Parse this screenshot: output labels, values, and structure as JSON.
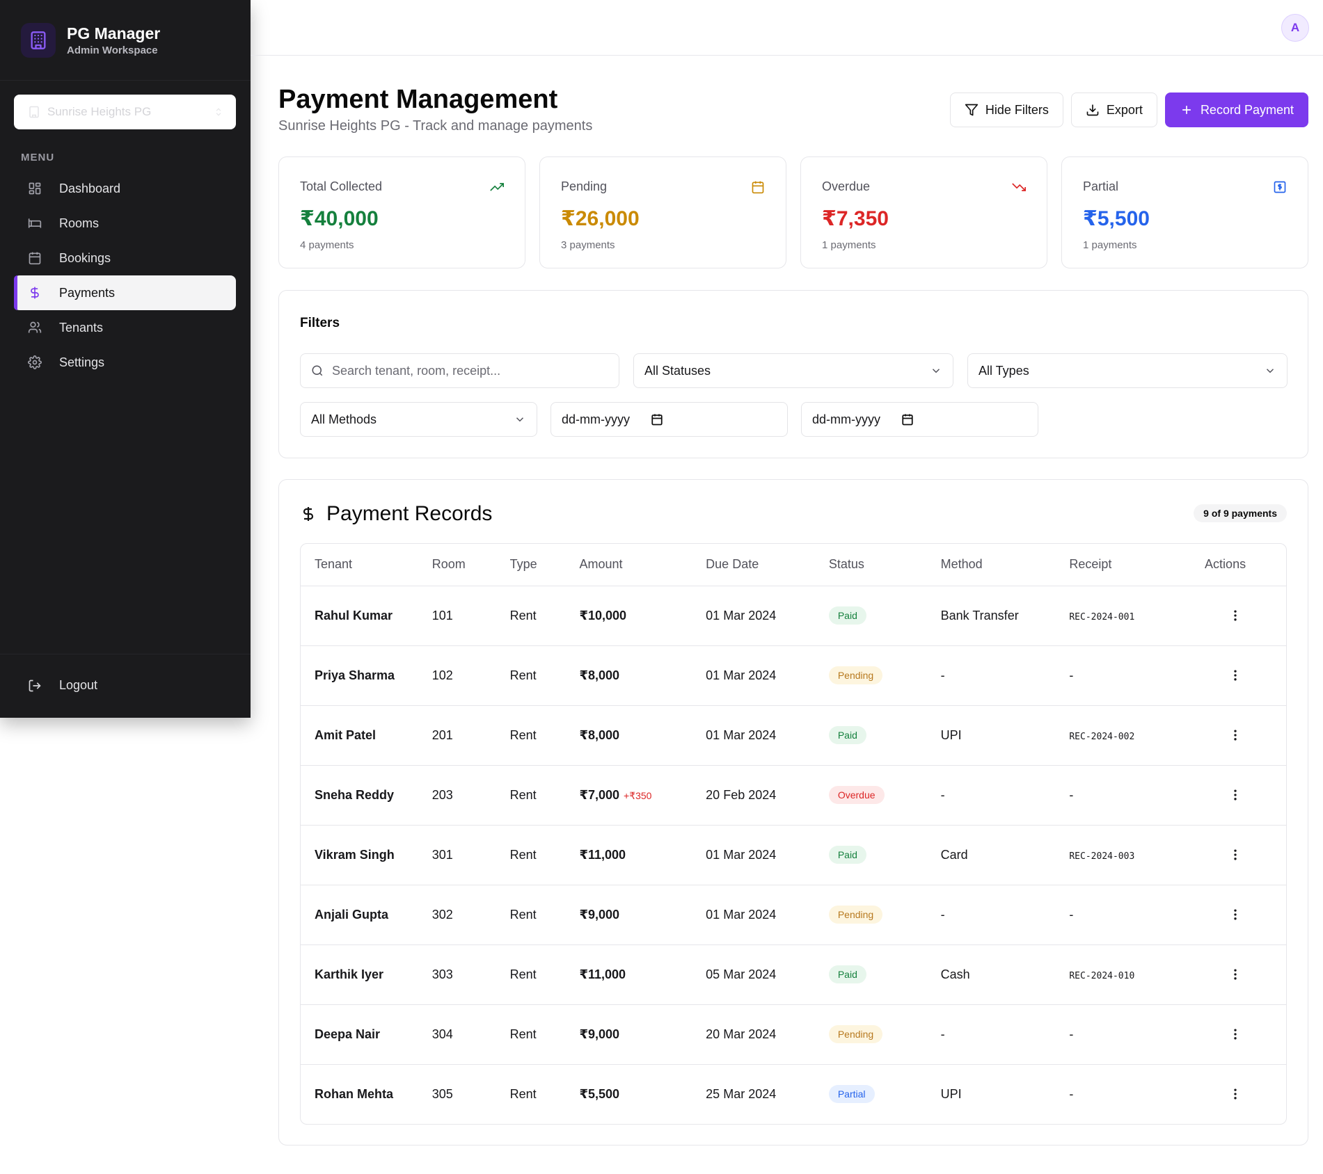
{
  "sidebar": {
    "brand_title": "PG Manager",
    "brand_subtitle": "Admin Workspace",
    "property_select": "Sunrise Heights PG",
    "menu_label": "MENU",
    "items": [
      {
        "label": "Dashboard",
        "icon": "dashboard-icon"
      },
      {
        "label": "Rooms",
        "icon": "bed-icon"
      },
      {
        "label": "Bookings",
        "icon": "calendar-icon"
      },
      {
        "label": "Payments",
        "icon": "dollar-icon",
        "active": true
      },
      {
        "label": "Tenants",
        "icon": "users-icon"
      },
      {
        "label": "Settings",
        "icon": "gear-icon"
      }
    ],
    "logout": "Logout"
  },
  "topbar": {
    "avatar": "A"
  },
  "header": {
    "title": "Payment Management",
    "subtitle": "Sunrise Heights PG - Track and manage payments",
    "hide_filters": "Hide Filters",
    "export": "Export",
    "record_payment": "Record Payment"
  },
  "stats": [
    {
      "label": "Total Collected",
      "value": "₹40,000",
      "count": "4 payments",
      "color": "#15803d",
      "icon": "trending-up-icon"
    },
    {
      "label": "Pending",
      "value": "₹26,000",
      "count": "3 payments",
      "color": "#ca8a04",
      "icon": "calendar-icon"
    },
    {
      "label": "Overdue",
      "value": "₹7,350",
      "count": "1 payments",
      "color": "#dc2626",
      "icon": "trending-down-icon"
    },
    {
      "label": "Partial",
      "value": "₹5,500",
      "count": "1 payments",
      "color": "#2563eb",
      "icon": "receipt-icon"
    }
  ],
  "filters": {
    "title": "Filters",
    "search_placeholder": "Search tenant, room, receipt...",
    "status": "All Statuses",
    "type": "All Types",
    "method": "All Methods",
    "date_from": "dd-mm-yyyy",
    "date_to": "dd-mm-yyyy"
  },
  "records": {
    "title": "Payment Records",
    "count": "9 of 9 payments",
    "columns": [
      "Tenant",
      "Room",
      "Type",
      "Amount",
      "Due Date",
      "Status",
      "Method",
      "Receipt",
      "Actions"
    ],
    "rows": [
      {
        "tenant": "Rahul Kumar",
        "room": "101",
        "type": "Rent",
        "amount": "₹10,000",
        "late": "",
        "due": "01 Mar 2024",
        "status": "Paid",
        "method": "Bank Transfer",
        "receipt": "REC-2024-001"
      },
      {
        "tenant": "Priya Sharma",
        "room": "102",
        "type": "Rent",
        "amount": "₹8,000",
        "late": "",
        "due": "01 Mar 2024",
        "status": "Pending",
        "method": "-",
        "receipt": "-"
      },
      {
        "tenant": "Amit Patel",
        "room": "201",
        "type": "Rent",
        "amount": "₹8,000",
        "late": "",
        "due": "01 Mar 2024",
        "status": "Paid",
        "method": "UPI",
        "receipt": "REC-2024-002"
      },
      {
        "tenant": "Sneha Reddy",
        "room": "203",
        "type": "Rent",
        "amount": "₹7,000",
        "late": "+₹350",
        "due": "20 Feb 2024",
        "status": "Overdue",
        "method": "-",
        "receipt": "-"
      },
      {
        "tenant": "Vikram Singh",
        "room": "301",
        "type": "Rent",
        "amount": "₹11,000",
        "late": "",
        "due": "01 Mar 2024",
        "status": "Paid",
        "method": "Card",
        "receipt": "REC-2024-003"
      },
      {
        "tenant": "Anjali Gupta",
        "room": "302",
        "type": "Rent",
        "amount": "₹9,000",
        "late": "",
        "due": "01 Mar 2024",
        "status": "Pending",
        "method": "-",
        "receipt": "-"
      },
      {
        "tenant": "Karthik Iyer",
        "room": "303",
        "type": "Rent",
        "amount": "₹11,000",
        "late": "",
        "due": "05 Mar 2024",
        "status": "Paid",
        "method": "Cash",
        "receipt": "REC-2024-010"
      },
      {
        "tenant": "Deepa Nair",
        "room": "304",
        "type": "Rent",
        "amount": "₹9,000",
        "late": "",
        "due": "20 Mar 2024",
        "status": "Pending",
        "method": "-",
        "receipt": "-"
      },
      {
        "tenant": "Rohan Mehta",
        "room": "305",
        "type": "Rent",
        "amount": "₹5,500",
        "late": "",
        "due": "25 Mar 2024",
        "status": "Partial",
        "method": "UPI",
        "receipt": "-"
      }
    ]
  },
  "status_colors": {
    "Paid": {
      "bg": "#e7f6ec",
      "fg": "#15803d"
    },
    "Pending": {
      "bg": "#fdf5df",
      "fg": "#b7791f"
    },
    "Overdue": {
      "bg": "#fde8e8",
      "fg": "#dc2626"
    },
    "Partial": {
      "bg": "#e6efff",
      "fg": "#2563eb"
    }
  },
  "accent": "#7c3aed"
}
